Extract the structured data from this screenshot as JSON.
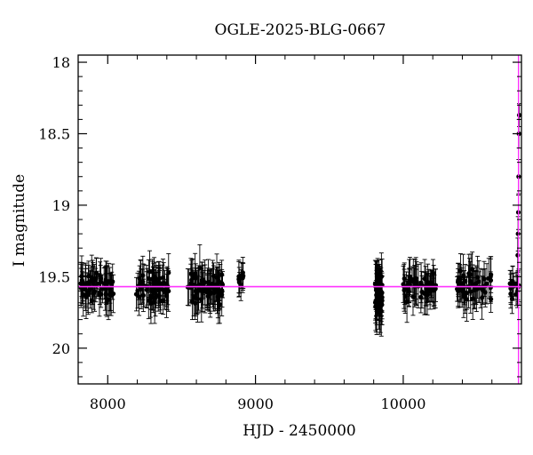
{
  "colors": {
    "data": "#000000",
    "baseline": "#ff33ff",
    "axes": "#000000"
  },
  "chart_data": {
    "type": "scatter",
    "title": "OGLE-2025-BLG-0667",
    "xlabel": "HJD - 2450000",
    "ylabel": "I magnitude",
    "xlim": [
      7800,
      10800
    ],
    "ylim": [
      20.25,
      17.95
    ],
    "y_inverted": true,
    "xticks": [
      8000,
      9000,
      10000
    ],
    "xtick_labels": [
      "8000",
      "9000",
      "10000"
    ],
    "yticks": [
      18,
      18.5,
      19,
      19.5,
      20
    ],
    "ytick_labels": [
      "18",
      "18.5",
      "19",
      "19.5",
      "20"
    ],
    "baseline_mag": 19.57,
    "event_time": 10780,
    "series": [
      {
        "seasons": [
          {
            "start": 7810,
            "end": 8040,
            "mean": 19.57,
            "scatter": 0.12,
            "err": 0.12,
            "n": 60
          },
          {
            "start": 8180,
            "end": 8420,
            "mean": 19.57,
            "scatter": 0.12,
            "err": 0.12,
            "n": 65
          },
          {
            "start": 8540,
            "end": 8780,
            "mean": 19.57,
            "scatter": 0.13,
            "err": 0.13,
            "n": 70
          },
          {
            "start": 8880,
            "end": 8920,
            "mean": 19.52,
            "scatter": 0.09,
            "err": 0.1,
            "n": 10
          },
          {
            "start": 9810,
            "end": 9860,
            "mean": 19.63,
            "scatter": 0.16,
            "err": 0.14,
            "n": 50
          },
          {
            "start": 9990,
            "end": 10220,
            "mean": 19.57,
            "scatter": 0.11,
            "err": 0.12,
            "n": 55
          },
          {
            "start": 10360,
            "end": 10600,
            "mean": 19.57,
            "scatter": 0.12,
            "err": 0.12,
            "n": 55
          },
          {
            "start": 10720,
            "end": 10790,
            "mean": 19.57,
            "scatter": 0.09,
            "err": 0.1,
            "n": 14
          }
        ],
        "event_points": [
          {
            "x": 10775,
            "y": 19.35,
            "err": 0.12
          },
          {
            "x": 10777,
            "y": 19.2,
            "err": 0.12
          },
          {
            "x": 10779,
            "y": 19.05,
            "err": 0.12
          },
          {
            "x": 10781,
            "y": 18.8,
            "err": 0.12
          },
          {
            "x": 10783,
            "y": 18.5,
            "err": 0.1
          },
          {
            "x": 10785,
            "y": 18.37,
            "err": 0.08
          }
        ]
      }
    ]
  }
}
